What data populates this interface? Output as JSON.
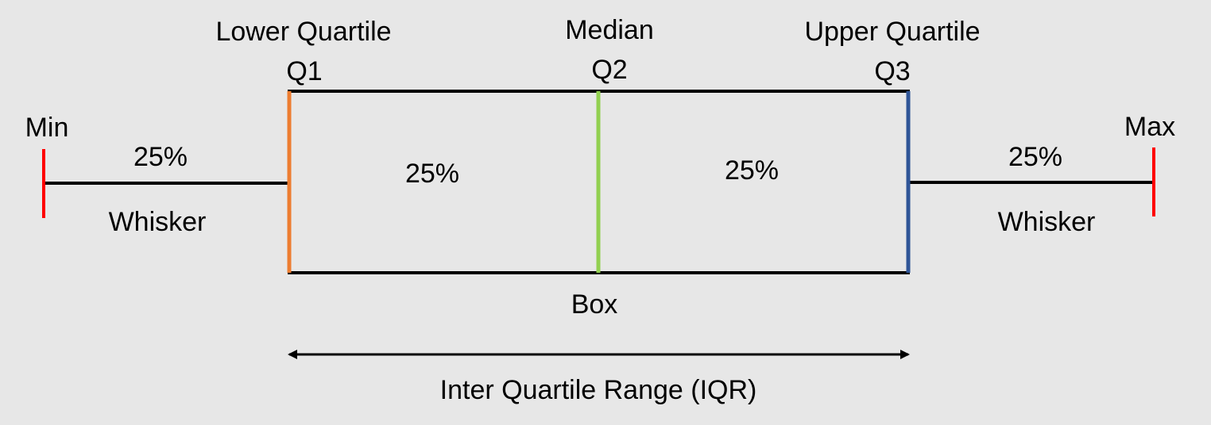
{
  "labels": {
    "lower_quartile": "Lower Quartile",
    "median": "Median",
    "upper_quartile": "Upper Quartile",
    "q1": "Q1",
    "q2": "Q2",
    "q3": "Q3",
    "min": "Min",
    "max": "Max",
    "left_percent": "25%",
    "box_left_percent": "25%",
    "box_right_percent": "25%",
    "right_percent": "25%",
    "left_whisker": "Whisker",
    "right_whisker": "Whisker",
    "box": "Box",
    "iqr": "Inter Quartile Range (IQR)"
  },
  "colors": {
    "background": "#e7e7e7",
    "outline": "#000000",
    "min_max_caps": "#ff0000",
    "q1_line": "#ed7d31",
    "median_line": "#92d050",
    "q3_line": "#2f5597"
  }
}
